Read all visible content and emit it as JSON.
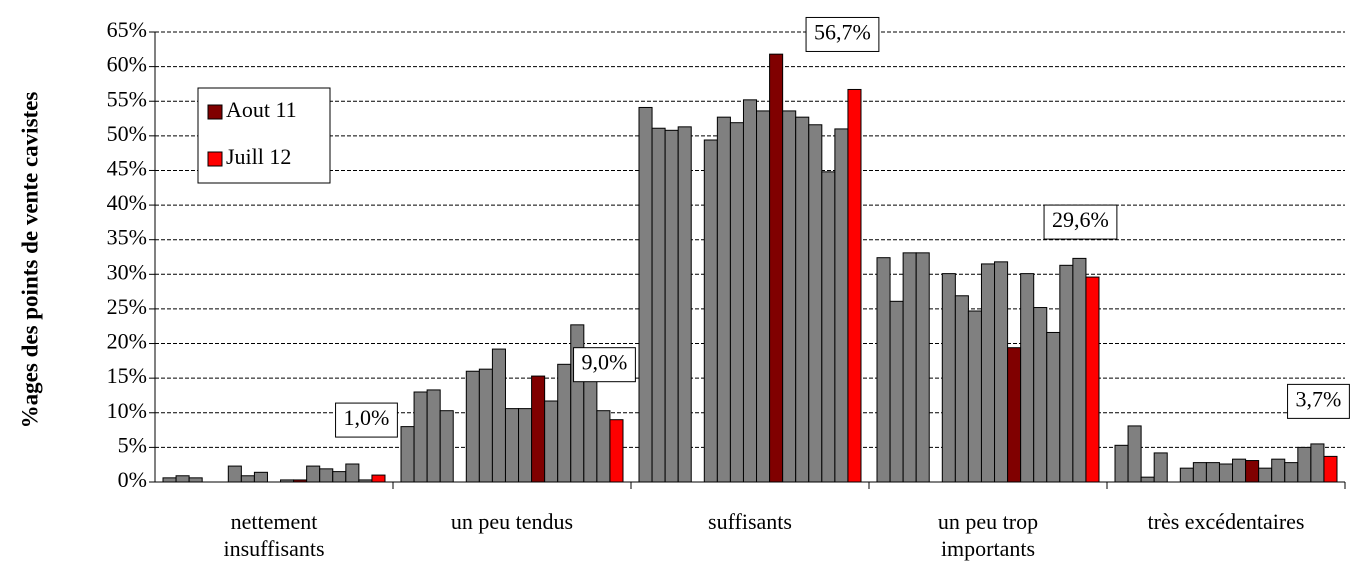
{
  "chart_data": {
    "type": "bar",
    "y_label": "%ages des points de vente cavistes",
    "categories": [
      "nettement\ninsuffisants",
      "un peu tendus",
      "suffisants",
      "un peu trop\nimportants",
      "très excédentaires"
    ],
    "ylim": [
      0,
      65
    ],
    "yticks": [
      {
        "value": 0,
        "label": "0%"
      },
      {
        "value": 5,
        "label": "5%"
      },
      {
        "value": 10,
        "label": "10%"
      },
      {
        "value": 15,
        "label": "15%"
      },
      {
        "value": 20,
        "label": "20%"
      },
      {
        "value": 25,
        "label": "25%"
      },
      {
        "value": 30,
        "label": "30%"
      },
      {
        "value": 35,
        "label": "35%"
      },
      {
        "value": 40,
        "label": "40%"
      },
      {
        "value": 45,
        "label": "45%"
      },
      {
        "value": 50,
        "label": "50%"
      },
      {
        "value": 55,
        "label": "55%"
      },
      {
        "value": 60,
        "label": "60%"
      },
      {
        "value": 65,
        "label": "65%"
      }
    ],
    "grid": true,
    "legend": {
      "position": "upper left"
    },
    "series": [
      {
        "color": "#808080",
        "values": [
          0.6,
          8.0,
          54.1,
          32.4,
          5.3
        ]
      },
      {
        "color": "#808080",
        "values": [
          0.9,
          13.0,
          51.1,
          26.1,
          8.1
        ]
      },
      {
        "color": "#808080",
        "values": [
          0.6,
          13.3,
          50.8,
          33.1,
          0.7
        ]
      },
      {
        "color": "#808080",
        "values": [
          0,
          10.3,
          51.3,
          33.1,
          4.2
        ]
      },
      {
        "color": "#808080",
        "values": [
          null,
          null,
          null,
          null,
          null
        ]
      },
      {
        "color": "#808080",
        "values": [
          2.3,
          16.0,
          49.4,
          30.1,
          2.0
        ]
      },
      {
        "color": "#808080",
        "values": [
          0.9,
          16.3,
          52.7,
          26.9,
          2.8
        ]
      },
      {
        "color": "#808080",
        "values": [
          1.4,
          19.2,
          51.9,
          24.7,
          2.8
        ]
      },
      {
        "color": "#808080",
        "values": [
          0,
          10.6,
          55.2,
          31.5,
          2.6
        ]
      },
      {
        "color": "#808080",
        "values": [
          0.3,
          10.6,
          53.6,
          31.8,
          3.3
        ]
      },
      {
        "name": "Aout 11",
        "color": "#800000",
        "values": [
          0.3,
          15.3,
          61.8,
          19.4,
          3.1
        ]
      },
      {
        "color": "#808080",
        "values": [
          2.3,
          11.7,
          53.6,
          30.1,
          2.0
        ]
      },
      {
        "color": "#808080",
        "values": [
          1.9,
          17.0,
          52.7,
          25.2,
          3.3
        ]
      },
      {
        "color": "#808080",
        "values": [
          1.5,
          22.7,
          51.6,
          21.6,
          2.8
        ]
      },
      {
        "color": "#808080",
        "values": [
          2.6,
          16.3,
          44.8,
          31.3,
          5.0
        ]
      },
      {
        "color": "#808080",
        "values": [
          0.3,
          10.3,
          51.0,
          32.3,
          5.5
        ]
      },
      {
        "name": "Juill 12",
        "color": "#ff0000",
        "values": [
          1.0,
          9.0,
          56.7,
          29.6,
          3.7
        ],
        "value_labels": [
          "1,0%",
          "9,0%",
          "56,7%",
          "29,6%",
          "3,7%"
        ]
      }
    ]
  }
}
